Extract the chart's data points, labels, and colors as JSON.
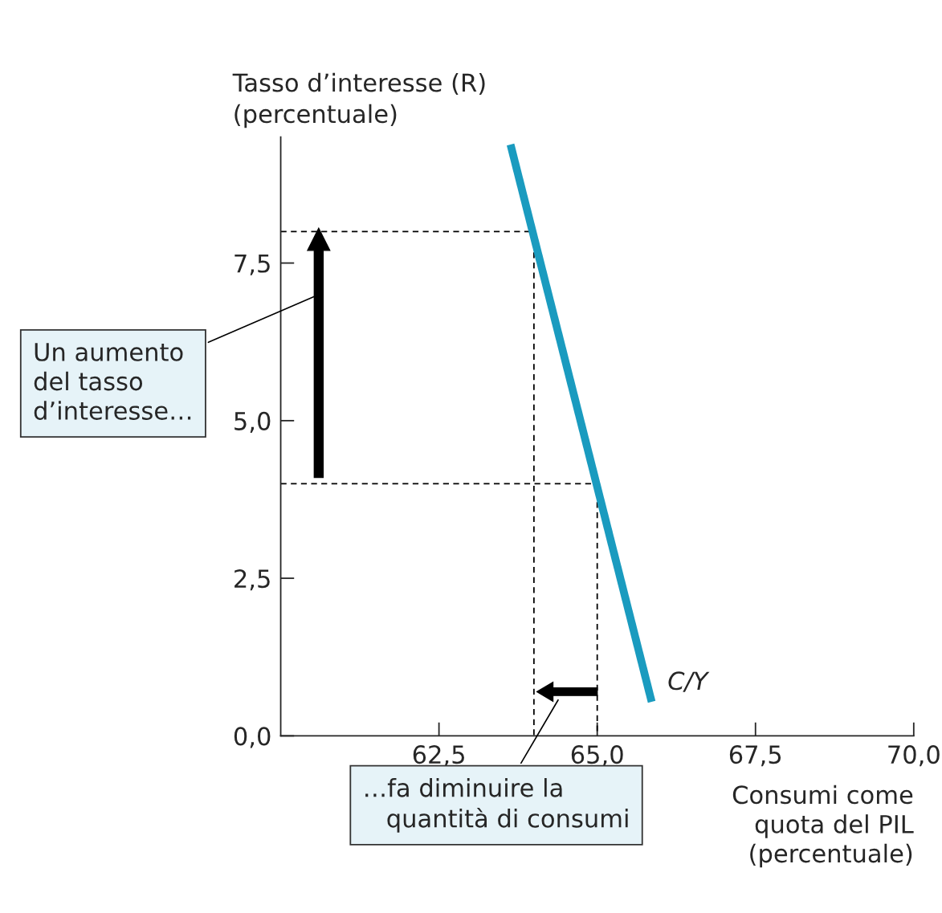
{
  "chart_data": {
    "type": "line",
    "xlabel": "Consumi come\nquota del PIL\n(percentuale)",
    "ylabel": "Tasso d’interesse (R)\n(percentuale)",
    "series": [
      {
        "name": "C/Y",
        "color": "#1a9bbf",
        "x": [
          63.63,
          65.86
        ],
        "values": [
          9.38,
          0.54
        ],
        "line_style": "solid"
      },
      {
        "color": "#000000",
        "x": [
          60,
          64,
          64
        ],
        "values": [
          8,
          8,
          0
        ],
        "line_style": "dashed"
      },
      {
        "color": "#000000",
        "x": [
          60,
          65,
          65
        ],
        "values": [
          4,
          4,
          0
        ],
        "line_style": "dashed"
      }
    ],
    "xlim": [
      60,
      70
    ],
    "ylim": [
      0,
      9.5
    ],
    "xticks": [
      {
        "value": 62.5,
        "label": "62,5"
      },
      {
        "value": 65,
        "label": "65,0"
      },
      {
        "value": 67.5,
        "label": "67,5"
      },
      {
        "value": 70,
        "label": "70,0"
      }
    ],
    "yticks": [
      {
        "value": 0,
        "label": "0,0"
      },
      {
        "value": 2.5,
        "label": "2,5"
      },
      {
        "value": 5,
        "label": "5,0"
      },
      {
        "value": 7.5,
        "label": "7,5"
      }
    ],
    "annotations": [
      "Un aumento\ndel tasso\nd’interesse…",
      "…fa diminuire la\n   quantità di consumi"
    ],
    "grid": false,
    "legend": false,
    "marker": "none"
  }
}
